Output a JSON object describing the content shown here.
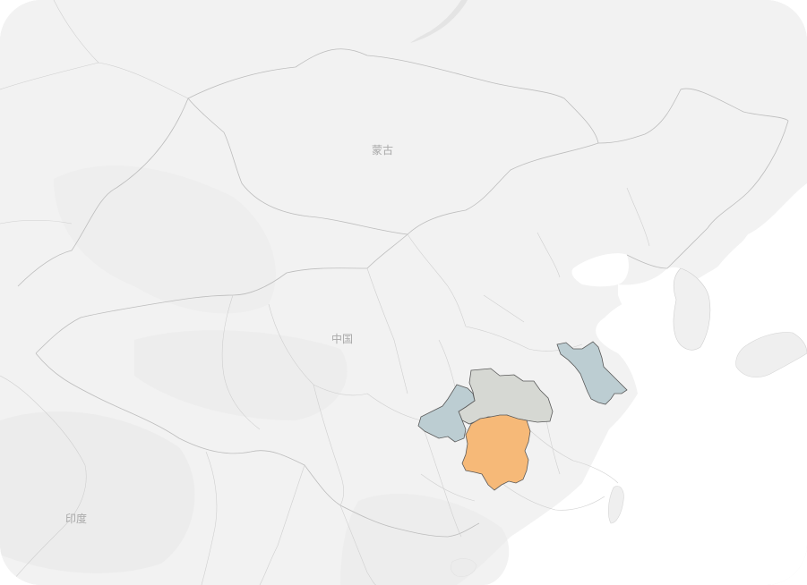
{
  "map": {
    "labels": {
      "mongolia": "蒙古",
      "china": "中国",
      "india": "印度"
    },
    "colors": {
      "land": "#f3f3f3",
      "land_shade": "#ebebeb",
      "water": "#e6e6e6",
      "sea": "#ffffff",
      "border": "#bdbdbd",
      "highlight_orange": "#f6b978",
      "highlight_bluegray": "#bccdd2",
      "highlight_gray": "#d6d8d3",
      "outline": "#5a5a5a"
    },
    "highlighted_regions": [
      {
        "name": "hunan",
        "color": "#f6b978"
      },
      {
        "name": "hubei",
        "color": "#d6d8d3"
      },
      {
        "name": "chongqing",
        "color": "#bccdd2"
      },
      {
        "name": "jiangsu",
        "color": "#bccdd2"
      }
    ]
  }
}
